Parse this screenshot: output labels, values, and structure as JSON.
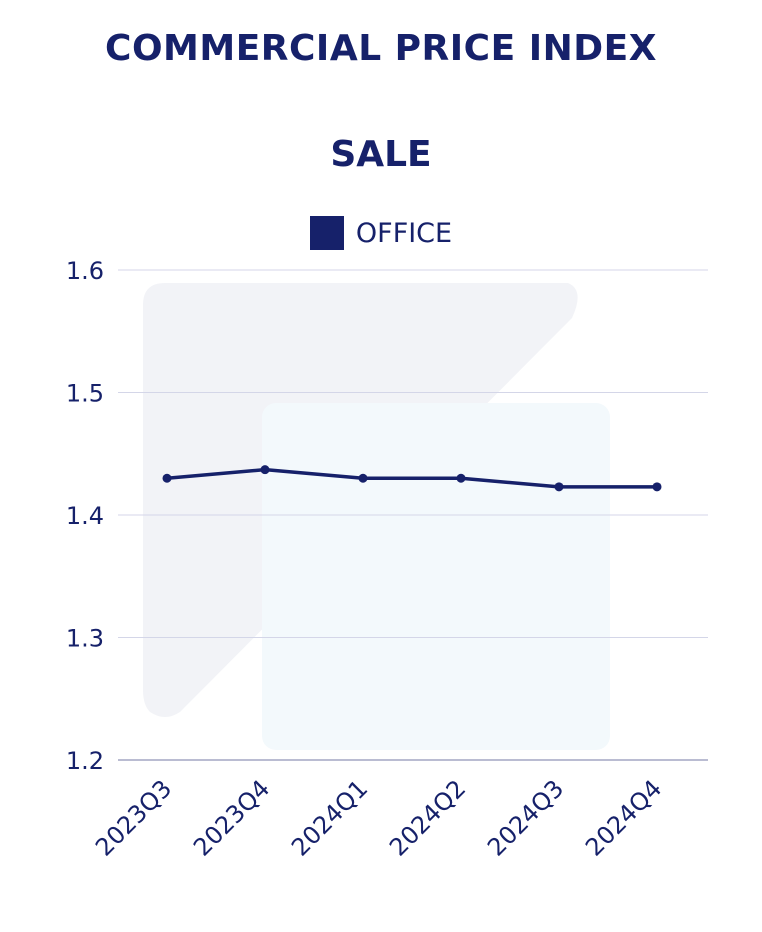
{
  "titles": {
    "main": "COMMERCIAL PRICE INDEX",
    "sub": "SALE"
  },
  "colors": {
    "series": "#16216a",
    "grid": "#d4d6e8",
    "text": "#16216a",
    "watermark_dark": "#f2f3f7",
    "watermark_light": "#f3f9fc"
  },
  "chart_data": {
    "type": "line",
    "title": "COMMERCIAL PRICE INDEX",
    "subtitle": "SALE",
    "categories": [
      "2023Q3",
      "2023Q4",
      "2024Q1",
      "2024Q2",
      "2024Q3",
      "2024Q4"
    ],
    "series": [
      {
        "name": "OFFICE",
        "values": [
          1.43,
          1.437,
          1.43,
          1.43,
          1.423,
          1.423
        ]
      }
    ],
    "yticks": [
      "1.2",
      "1.3",
      "1.4",
      "1.5",
      "1.6"
    ],
    "ylim": [
      1.2,
      1.6
    ],
    "grid": true,
    "legend": "top-center"
  }
}
